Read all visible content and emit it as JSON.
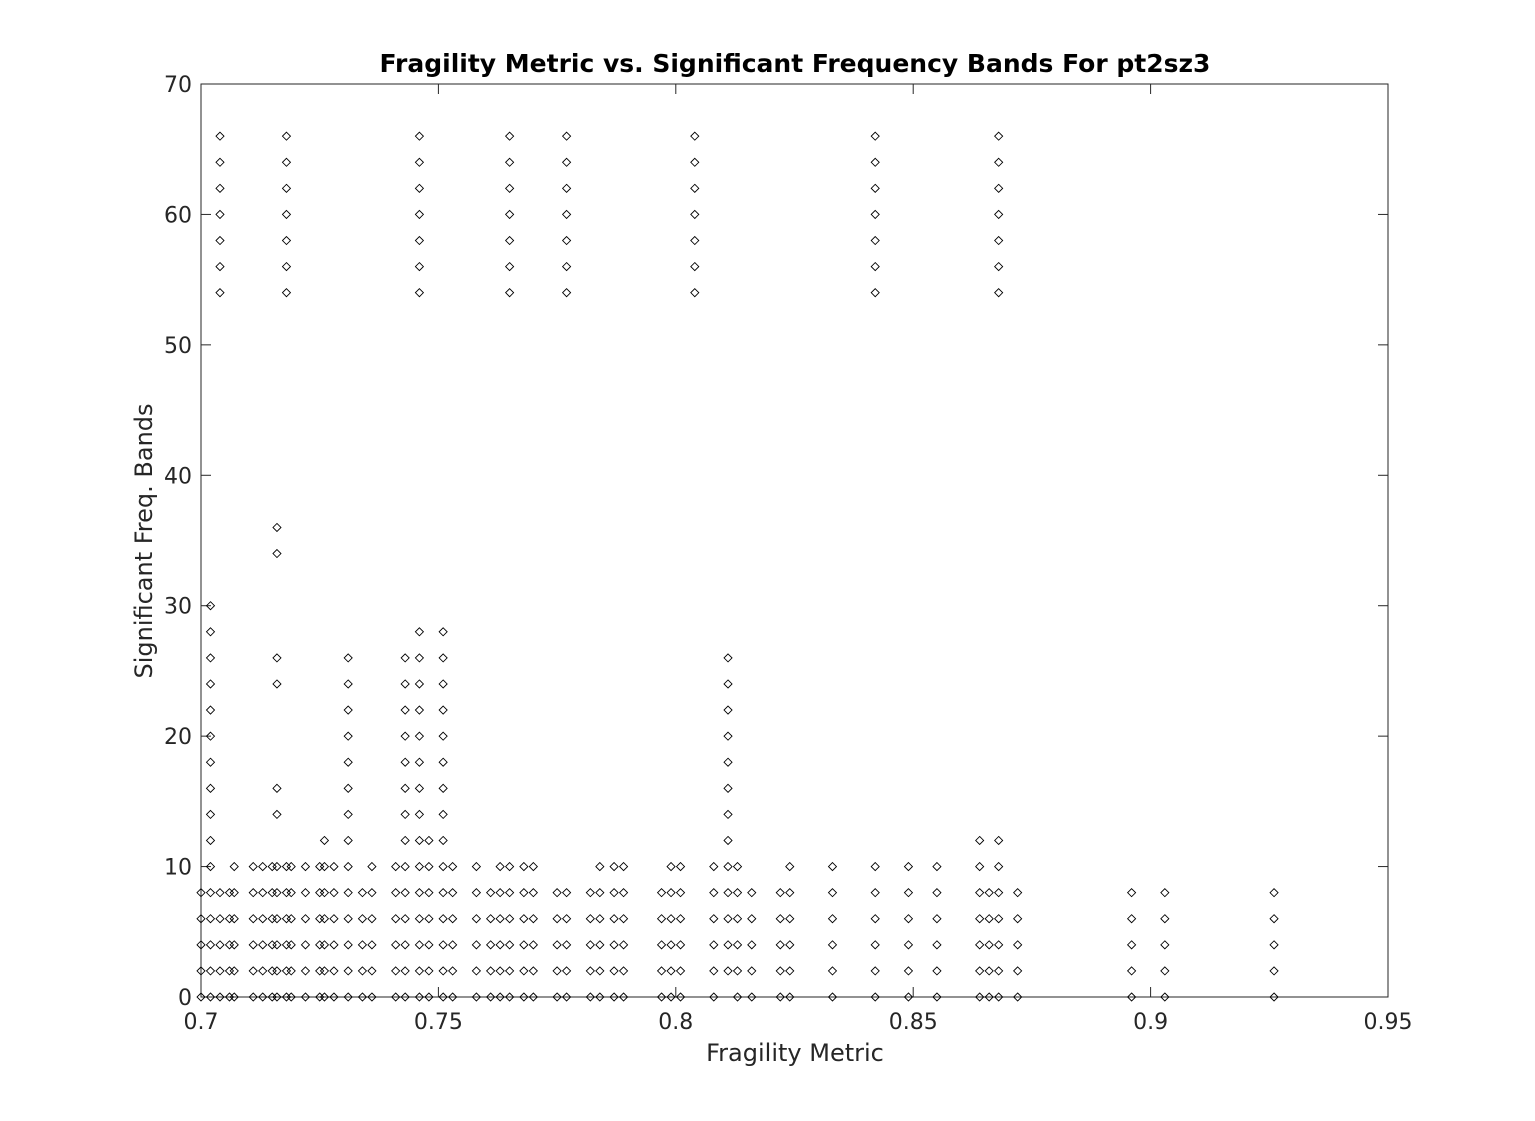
{
  "chart_data": {
    "type": "scatter",
    "title": "Fragility Metric vs. Significant Frequency Bands For pt2sz3",
    "xlabel": "Fragility Metric",
    "ylabel": "Significant Freq. Bands",
    "xlim": [
      0.7,
      0.95
    ],
    "ylim": [
      0,
      70
    ],
    "grid": false,
    "legend": "none",
    "marker": "open-diamond",
    "x_ticks": [
      {
        "value": 0.7,
        "label": "0.7"
      },
      {
        "value": 0.75,
        "label": "0.75"
      },
      {
        "value": 0.8,
        "label": "0.8"
      },
      {
        "value": 0.85,
        "label": "0.85"
      },
      {
        "value": 0.9,
        "label": "0.9"
      },
      {
        "value": 0.95,
        "label": "0.95"
      }
    ],
    "y_ticks": [
      {
        "value": 0,
        "label": "0"
      },
      {
        "value": 10,
        "label": "10"
      },
      {
        "value": 20,
        "label": "20"
      },
      {
        "value": 30,
        "label": "30"
      },
      {
        "value": 40,
        "label": "40"
      },
      {
        "value": 50,
        "label": "50"
      },
      {
        "value": 60,
        "label": "60"
      },
      {
        "value": 70,
        "label": "70"
      }
    ],
    "columns": [
      {
        "x": 0.7,
        "ys": [
          0,
          2,
          4,
          6,
          8
        ]
      },
      {
        "x": 0.702,
        "ys": [
          0,
          2,
          4,
          6,
          8,
          10,
          12,
          14,
          16,
          18,
          20,
          22,
          24,
          26,
          28,
          30
        ]
      },
      {
        "x": 0.704,
        "ys": [
          0,
          2,
          4,
          6,
          8,
          54,
          56,
          58,
          60,
          62,
          64,
          66
        ]
      },
      {
        "x": 0.706,
        "ys": [
          0,
          2,
          4,
          6,
          8
        ]
      },
      {
        "x": 0.707,
        "ys": [
          0,
          2,
          4,
          6,
          8,
          10
        ]
      },
      {
        "x": 0.711,
        "ys": [
          0,
          2,
          4,
          6,
          8,
          10
        ]
      },
      {
        "x": 0.713,
        "ys": [
          0,
          2,
          4,
          6,
          8,
          10
        ]
      },
      {
        "x": 0.715,
        "ys": [
          0,
          2,
          4,
          6,
          8,
          10
        ]
      },
      {
        "x": 0.716,
        "ys": [
          0,
          2,
          4,
          6,
          8,
          10,
          14,
          16,
          24,
          26,
          34,
          36
        ]
      },
      {
        "x": 0.718,
        "ys": [
          0,
          2,
          4,
          6,
          8,
          10,
          54,
          56,
          58,
          60,
          62,
          64,
          66
        ]
      },
      {
        "x": 0.719,
        "ys": [
          0,
          2,
          4,
          6,
          8,
          10
        ]
      },
      {
        "x": 0.722,
        "ys": [
          0,
          2,
          4,
          6,
          8,
          10
        ]
      },
      {
        "x": 0.725,
        "ys": [
          0,
          2,
          4,
          6,
          8,
          10
        ]
      },
      {
        "x": 0.726,
        "ys": [
          0,
          2,
          4,
          6,
          8,
          10,
          12
        ]
      },
      {
        "x": 0.728,
        "ys": [
          0,
          2,
          4,
          6,
          8,
          10
        ]
      },
      {
        "x": 0.731,
        "ys": [
          0,
          2,
          4,
          6,
          8,
          10,
          12,
          14,
          16,
          18,
          20,
          22,
          24,
          26
        ]
      },
      {
        "x": 0.734,
        "ys": [
          0,
          2,
          4,
          6,
          8
        ]
      },
      {
        "x": 0.736,
        "ys": [
          0,
          2,
          4,
          6,
          8,
          10
        ]
      },
      {
        "x": 0.741,
        "ys": [
          0,
          2,
          4,
          6,
          8,
          10
        ]
      },
      {
        "x": 0.743,
        "ys": [
          0,
          2,
          4,
          6,
          8,
          10,
          12,
          14,
          16,
          18,
          20,
          22,
          24,
          26
        ]
      },
      {
        "x": 0.746,
        "ys": [
          0,
          2,
          4,
          6,
          8,
          10,
          12,
          14,
          16,
          18,
          20,
          22,
          24,
          26,
          28,
          54,
          56,
          58,
          60,
          62,
          64,
          66
        ]
      },
      {
        "x": 0.748,
        "ys": [
          0,
          2,
          4,
          6,
          8,
          10,
          12
        ]
      },
      {
        "x": 0.751,
        "ys": [
          0,
          2,
          4,
          6,
          8,
          10,
          12,
          14,
          16,
          18,
          20,
          22,
          24,
          26,
          28
        ]
      },
      {
        "x": 0.753,
        "ys": [
          0,
          2,
          4,
          6,
          8,
          10
        ]
      },
      {
        "x": 0.758,
        "ys": [
          0,
          2,
          4,
          6,
          8,
          10
        ]
      },
      {
        "x": 0.761,
        "ys": [
          0,
          2,
          4,
          6,
          8
        ]
      },
      {
        "x": 0.763,
        "ys": [
          0,
          2,
          4,
          6,
          8,
          10
        ]
      },
      {
        "x": 0.765,
        "ys": [
          0,
          2,
          4,
          6,
          8,
          10,
          54,
          56,
          58,
          60,
          62,
          64,
          66
        ]
      },
      {
        "x": 0.768,
        "ys": [
          0,
          2,
          4,
          6,
          8,
          10
        ]
      },
      {
        "x": 0.77,
        "ys": [
          0,
          2,
          4,
          6,
          8,
          10
        ]
      },
      {
        "x": 0.775,
        "ys": [
          0,
          2,
          4,
          6,
          8
        ]
      },
      {
        "x": 0.777,
        "ys": [
          0,
          2,
          4,
          6,
          8,
          54,
          56,
          58,
          60,
          62,
          64,
          66
        ]
      },
      {
        "x": 0.782,
        "ys": [
          0,
          2,
          4,
          6,
          8
        ]
      },
      {
        "x": 0.784,
        "ys": [
          0,
          2,
          4,
          6,
          8,
          10
        ]
      },
      {
        "x": 0.787,
        "ys": [
          0,
          2,
          4,
          6,
          8,
          10
        ]
      },
      {
        "x": 0.789,
        "ys": [
          0,
          2,
          4,
          6,
          8,
          10
        ]
      },
      {
        "x": 0.797,
        "ys": [
          0,
          2,
          4,
          6,
          8
        ]
      },
      {
        "x": 0.799,
        "ys": [
          0,
          2,
          4,
          6,
          8,
          10
        ]
      },
      {
        "x": 0.801,
        "ys": [
          0,
          2,
          4,
          6,
          8,
          10
        ]
      },
      {
        "x": 0.804,
        "ys": [
          54,
          56,
          58,
          60,
          62,
          64,
          66
        ]
      },
      {
        "x": 0.808,
        "ys": [
          0,
          2,
          4,
          6,
          8,
          10
        ]
      },
      {
        "x": 0.811,
        "ys": [
          2,
          4,
          6,
          8,
          10,
          12,
          14,
          16,
          18,
          20,
          22,
          24,
          26
        ]
      },
      {
        "x": 0.813,
        "ys": [
          0,
          2,
          4,
          6,
          8,
          10
        ]
      },
      {
        "x": 0.816,
        "ys": [
          0,
          2,
          4,
          6,
          8
        ]
      },
      {
        "x": 0.822,
        "ys": [
          0,
          2,
          4,
          6,
          8
        ]
      },
      {
        "x": 0.824,
        "ys": [
          0,
          2,
          4,
          6,
          8,
          10
        ]
      },
      {
        "x": 0.833,
        "ys": [
          0,
          2,
          4,
          6,
          8,
          10
        ]
      },
      {
        "x": 0.842,
        "ys": [
          0,
          2,
          4,
          6,
          8,
          10,
          54,
          56,
          58,
          60,
          62,
          64,
          66
        ]
      },
      {
        "x": 0.849,
        "ys": [
          0,
          2,
          4,
          6,
          8,
          10
        ]
      },
      {
        "x": 0.855,
        "ys": [
          0,
          2,
          4,
          6,
          8,
          10
        ]
      },
      {
        "x": 0.864,
        "ys": [
          0,
          2,
          4,
          6,
          8,
          10,
          12
        ]
      },
      {
        "x": 0.866,
        "ys": [
          0,
          2,
          4,
          6,
          8
        ]
      },
      {
        "x": 0.868,
        "ys": [
          0,
          2,
          4,
          6,
          8,
          10,
          12,
          54,
          56,
          58,
          60,
          62,
          64,
          66
        ]
      },
      {
        "x": 0.872,
        "ys": [
          0,
          2,
          4,
          6,
          8
        ]
      },
      {
        "x": 0.896,
        "ys": [
          0,
          2,
          4,
          6,
          8
        ]
      },
      {
        "x": 0.903,
        "ys": [
          0,
          2,
          4,
          6,
          8
        ]
      },
      {
        "x": 0.926,
        "ys": [
          0,
          2,
          4,
          6,
          8
        ]
      }
    ]
  }
}
